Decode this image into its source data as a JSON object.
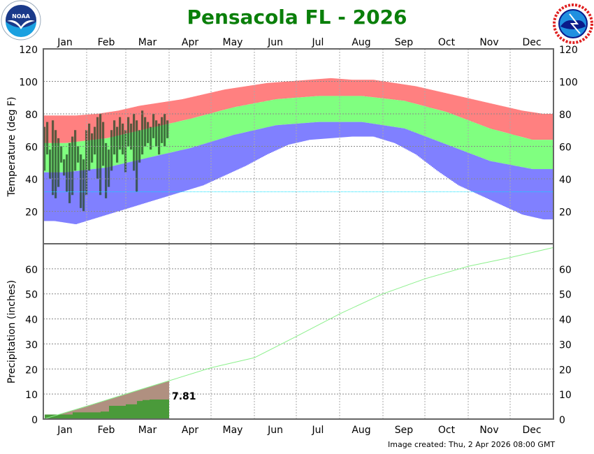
{
  "title": "Pensacola FL - 2026",
  "footer": "Image created: Thu, 2 Apr 2026 08:00 GMT",
  "logos": {
    "left": "NOAA",
    "right": "NATIONAL WEATHER SERVICE"
  },
  "colors": {
    "title": "#0a7f0a",
    "record_high": "#ff8080",
    "normal_band": "#80ff80",
    "record_low": "#8080ff",
    "observed": "#2a4a2a",
    "freezing_line": "#00e0ff",
    "precip_normal": "#8cf08c",
    "precip_normal_fill": "#b09080",
    "precip_observed": "#4a9a3a"
  },
  "chart_data": [
    {
      "type": "bar",
      "ylabel": "Temperature (deg F)",
      "ylim": [
        0,
        120
      ],
      "yticks": [
        20,
        40,
        60,
        80,
        100,
        120
      ],
      "months": [
        "Jan",
        "Feb",
        "Mar",
        "Apr",
        "May",
        "Jun",
        "Jul",
        "Aug",
        "Sep",
        "Oct",
        "Nov",
        "Dec"
      ],
      "grid": true,
      "freezing_line": 32,
      "normal_high_monthly": [
        62,
        65,
        71,
        77,
        84,
        89,
        91,
        91,
        88,
        81,
        71,
        64
      ],
      "normal_low_monthly": [
        44,
        47,
        53,
        59,
        67,
        73,
        75,
        75,
        71,
        61,
        51,
        46
      ],
      "record_high_semimonthly": [
        79,
        79,
        80,
        82,
        85,
        87,
        89,
        92,
        95,
        97,
        99,
        100,
        101,
        102,
        101,
        101,
        99,
        97,
        94,
        91,
        88,
        85,
        82,
        80
      ],
      "record_low_semimonthly": [
        14,
        12,
        16,
        20,
        24,
        28,
        32,
        36,
        42,
        48,
        55,
        61,
        64,
        65,
        66,
        66,
        62,
        55,
        45,
        36,
        30,
        24,
        18,
        15
      ],
      "observed_high_every_2_days": [
        72,
        75,
        58,
        76,
        70,
        65,
        60,
        52,
        55,
        62,
        66,
        70,
        60,
        55,
        52,
        70,
        74,
        68,
        72,
        78,
        80,
        75,
        62,
        58,
        70,
        76,
        72,
        78,
        74,
        70,
        78,
        74,
        80,
        76,
        70,
        82,
        78,
        75,
        72,
        80,
        76,
        74,
        78,
        80,
        76
      ],
      "observed_low_every_2_days": [
        45,
        55,
        40,
        30,
        28,
        35,
        50,
        42,
        32,
        25,
        30,
        45,
        50,
        22,
        20,
        30,
        45,
        50,
        55,
        40,
        30,
        48,
        28,
        35,
        45,
        55,
        50,
        58,
        55,
        44,
        60,
        58,
        45,
        32,
        50,
        55,
        60,
        62,
        58,
        65,
        60,
        55,
        62,
        60,
        65
      ]
    },
    {
      "type": "area",
      "ylabel": "Precipitation (inches)",
      "ylim": [
        0,
        70
      ],
      "yticks": [
        0,
        10,
        20,
        30,
        40,
        50,
        60
      ],
      "normal_cumulative_month_start": [
        0,
        5.1,
        10.0,
        15.3,
        20.5,
        24.5,
        33,
        42,
        50,
        56,
        61,
        64.5,
        68.5
      ],
      "observed_cumulative_steps": [
        [
          1,
          1.8
        ],
        [
          21,
          2.7
        ],
        [
          41,
          3.0
        ],
        [
          47,
          5.3
        ],
        [
          59,
          5.9
        ],
        [
          67,
          7.2
        ],
        [
          71,
          7.6
        ],
        [
          76,
          7.81
        ]
      ],
      "observed_through_day": 90,
      "observed_total_label": "7.81"
    }
  ]
}
